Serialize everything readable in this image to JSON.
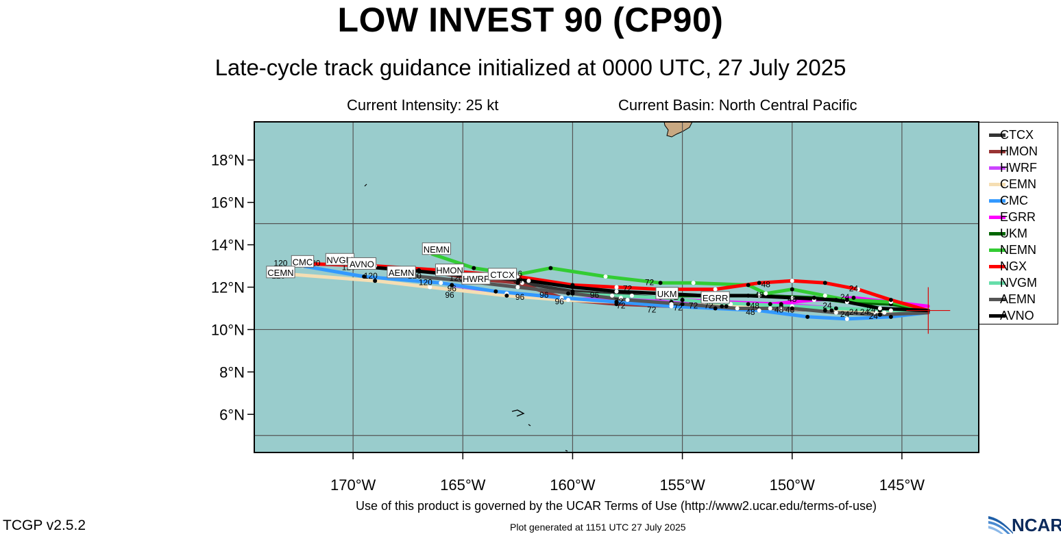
{
  "header": {
    "title": "LOW INVEST 90 (CP90)",
    "subtitle": "Late-cycle track guidance initialized at 0000 UTC, 27 July 2025",
    "intensity": "Current Intensity: 25 kt",
    "basin": "Current Basin: North Central Pacific"
  },
  "map": {
    "lon_range": [
      -174.5,
      -141.5
    ],
    "lat_range": [
      4.2,
      19.8
    ],
    "background_color": "#99cccc",
    "land_color": "#c8a882",
    "axis_labels": {
      "lat": [
        "6°N",
        "8°N",
        "10°N",
        "12°N",
        "14°N",
        "16°N",
        "18°N"
      ],
      "lon": [
        "170°W",
        "165°W",
        "160°W",
        "155°W",
        "150°W",
        "145°W"
      ]
    },
    "current_position": {
      "lon": -143.8,
      "lat": 10.9
    }
  },
  "models": [
    {
      "name": "CTCX",
      "color": "#333333",
      "track": [
        [
          -143.8,
          10.9
        ],
        [
          -146.0,
          10.7
        ],
        [
          -148.2,
          10.9
        ],
        [
          -150.5,
          11.1
        ],
        [
          -152.8,
          11.2
        ],
        [
          -155.0,
          11.4
        ],
        [
          -157.3,
          11.6
        ],
        [
          -160.0,
          11.8
        ],
        [
          -162.3,
          12.2
        ],
        [
          -164.0,
          12.5
        ]
      ]
    },
    {
      "name": "HMON",
      "color": "#993333",
      "track": [
        [
          -143.8,
          10.8
        ],
        [
          -146.2,
          10.8
        ],
        [
          -148.5,
          10.9
        ],
        [
          -151.0,
          11.0
        ],
        [
          -153.2,
          11.1
        ],
        [
          -155.5,
          11.1
        ],
        [
          -158.0,
          11.2
        ],
        [
          -160.2,
          11.4
        ],
        [
          -162.5,
          12.2
        ],
        [
          -164.5,
          12.4
        ],
        [
          -167.0,
          12.8
        ]
      ]
    },
    {
      "name": "HWRF",
      "color": "#cc44ff",
      "track": [
        [
          -143.8,
          10.8
        ],
        [
          -146.0,
          10.9
        ],
        [
          -148.0,
          11.0
        ],
        [
          -150.5,
          11.2
        ],
        [
          -153.0,
          11.3
        ],
        [
          -155.5,
          11.3
        ],
        [
          -157.8,
          11.5
        ],
        [
          -160.5,
          11.4
        ],
        [
          -163.0,
          11.7
        ],
        [
          -165.5,
          12.1
        ]
      ]
    },
    {
      "name": "CEMN",
      "color": "#f5deb3",
      "track": [
        [
          -143.8,
          10.9
        ],
        [
          -145.8,
          10.8
        ],
        [
          -148.2,
          10.9
        ],
        [
          -150.5,
          11.0
        ],
        [
          -153.0,
          11.1
        ],
        [
          -155.5,
          11.2
        ],
        [
          -158.0,
          11.3
        ],
        [
          -160.5,
          11.4
        ],
        [
          -163.0,
          11.6
        ],
        [
          -166.5,
          12.0
        ],
        [
          -169.0,
          12.3
        ],
        [
          -172.8,
          12.6
        ]
      ]
    },
    {
      "name": "CMC",
      "color": "#3399ff",
      "track": [
        [
          -143.8,
          10.8
        ],
        [
          -145.5,
          10.6
        ],
        [
          -147.5,
          10.5
        ],
        [
          -149.3,
          10.6
        ],
        [
          -151.5,
          10.9
        ],
        [
          -153.5,
          11.0
        ],
        [
          -155.5,
          11.1
        ],
        [
          -158.0,
          11.3
        ],
        [
          -160.5,
          11.5
        ],
        [
          -163.5,
          11.8
        ],
        [
          -166.0,
          12.2
        ],
        [
          -169.5,
          12.5
        ],
        [
          -172.3,
          13.0
        ]
      ]
    },
    {
      "name": "EGRR",
      "color": "#ff00ff",
      "track": [
        [
          -143.8,
          11.1
        ],
        [
          -145.5,
          11.3
        ],
        [
          -147.2,
          11.5
        ],
        [
          -149.0,
          11.4
        ],
        [
          -151.0,
          11.2
        ],
        [
          -153.2,
          11.3
        ],
        [
          -155.0,
          11.4
        ]
      ]
    },
    {
      "name": "UKM",
      "color": "#006600",
      "track": [
        [
          -143.8,
          10.9
        ],
        [
          -145.5,
          11.2
        ],
        [
          -147.5,
          11.3
        ],
        [
          -149.0,
          11.5
        ],
        [
          -151.5,
          11.6
        ],
        [
          -153.5,
          11.6
        ],
        [
          -155.6,
          11.6
        ]
      ]
    },
    {
      "name": "NEMN",
      "color": "#33cc33",
      "track": [
        [
          -143.8,
          10.9
        ],
        [
          -145.5,
          11.3
        ],
        [
          -147.5,
          11.4
        ],
        [
          -148.5,
          11.6
        ],
        [
          -150.0,
          11.9
        ],
        [
          -151.2,
          11.7
        ],
        [
          -152.0,
          12.1
        ],
        [
          -154.5,
          12.2
        ],
        [
          -156.0,
          12.2
        ],
        [
          -158.5,
          12.5
        ],
        [
          -161.0,
          12.9
        ],
        [
          -162.5,
          12.6
        ],
        [
          -164.5,
          12.9
        ],
        [
          -166.5,
          13.6
        ]
      ]
    },
    {
      "name": "NGX",
      "color": "#ff0000",
      "track": [
        [
          -143.8,
          10.9
        ],
        [
          -145.5,
          11.4
        ],
        [
          -147.0,
          11.9
        ],
        [
          -148.5,
          12.2
        ],
        [
          -150.0,
          12.3
        ],
        [
          -151.5,
          12.2
        ],
        [
          -153.5,
          11.9
        ],
        [
          -156.0,
          11.9
        ],
        [
          -158.0,
          12.0
        ],
        [
          -160.0,
          12.1
        ],
        [
          -162.5,
          12.5
        ],
        [
          -166.0,
          12.8
        ],
        [
          -169.0,
          13.0
        ],
        [
          -172.0,
          13.1
        ]
      ]
    },
    {
      "name": "NVGM",
      "color": "#66ddaa",
      "track": [
        [
          -143.8,
          10.9
        ],
        [
          -145.5,
          10.9
        ],
        [
          -148.0,
          11.0
        ],
        [
          -150.0,
          11.1
        ],
        [
          -152.0,
          11.2
        ],
        [
          -154.0,
          11.3
        ],
        [
          -156.0,
          11.5
        ],
        [
          -158.2,
          11.6
        ],
        [
          -160.2,
          11.7
        ]
      ]
    },
    {
      "name": "AEMN",
      "color": "#555555",
      "track": [
        [
          -143.8,
          10.8
        ],
        [
          -146.0,
          10.7
        ],
        [
          -148.0,
          10.8
        ],
        [
          -150.0,
          11.0
        ],
        [
          -152.5,
          11.0
        ],
        [
          -155.0,
          11.2
        ],
        [
          -157.5,
          11.4
        ],
        [
          -160.0,
          11.7
        ],
        [
          -162.5,
          12.0
        ],
        [
          -165.0,
          12.3
        ],
        [
          -168.0,
          12.6
        ]
      ]
    },
    {
      "name": "AVNO",
      "color": "#000000",
      "track": [
        [
          -143.8,
          10.9
        ],
        [
          -146.0,
          11.0
        ],
        [
          -148.0,
          11.4
        ],
        [
          -150.0,
          11.5
        ],
        [
          -152.0,
          11.6
        ],
        [
          -154.0,
          11.6
        ],
        [
          -156.0,
          11.7
        ],
        [
          -158.0,
          11.8
        ],
        [
          -160.0,
          12.0
        ],
        [
          -162.0,
          12.3
        ],
        [
          -164.5,
          12.5
        ],
        [
          -167.5,
          12.8
        ],
        [
          -170.0,
          13.0
        ]
      ]
    }
  ],
  "track_labels": [
    {
      "text": "CMC",
      "lon": -172.3,
      "lat": 13.2
    },
    {
      "text": "NVGM",
      "lon": -170.6,
      "lat": 13.3
    },
    {
      "text": "AVNO",
      "lon": -169.6,
      "lat": 13.1
    },
    {
      "text": "NEMN",
      "lon": -166.2,
      "lat": 13.8
    },
    {
      "text": "CEMN",
      "lon": -173.3,
      "lat": 12.7
    },
    {
      "text": "AEMN",
      "lon": -167.8,
      "lat": 12.7
    },
    {
      "text": "HMON",
      "lon": -165.6,
      "lat": 12.8
    },
    {
      "text": "HWRF",
      "lon": -164.4,
      "lat": 12.4
    },
    {
      "text": "CTCX",
      "lon": -163.2,
      "lat": 12.6
    },
    {
      "text": "UKM",
      "lon": -155.7,
      "lat": 11.7
    },
    {
      "text": "EGRR",
      "lon": -153.5,
      "lat": 11.5
    }
  ],
  "hour_labels": [
    {
      "text": "120",
      "lon": -173.3,
      "lat": 13.0
    },
    {
      "text": "120",
      "lon": -171.8,
      "lat": 13.0
    },
    {
      "text": "120",
      "lon": -173.4,
      "lat": 12.4
    },
    {
      "text": "120",
      "lon": -170.2,
      "lat": 12.8
    },
    {
      "text": "120",
      "lon": -169.2,
      "lat": 12.4
    },
    {
      "text": "120",
      "lon": -167.2,
      "lat": 12.4
    },
    {
      "text": "120",
      "lon": -166.7,
      "lat": 12.1
    },
    {
      "text": "120",
      "lon": -165.3,
      "lat": 12.3
    },
    {
      "text": "96",
      "lon": -165.5,
      "lat": 11.8
    },
    {
      "text": "96",
      "lon": -165.6,
      "lat": 11.5
    },
    {
      "text": "96",
      "lon": -164.5,
      "lat": 12.2
    },
    {
      "text": "96",
      "lon": -162.5,
      "lat": 12.5
    },
    {
      "text": "96",
      "lon": -162.5,
      "lat": 12.2
    },
    {
      "text": "96",
      "lon": -162.4,
      "lat": 11.4
    },
    {
      "text": "96",
      "lon": -161.3,
      "lat": 11.5
    },
    {
      "text": "96",
      "lon": -160.6,
      "lat": 11.2
    },
    {
      "text": "96",
      "lon": -159.0,
      "lat": 11.5
    },
    {
      "text": "72",
      "lon": -156.5,
      "lat": 12.1
    },
    {
      "text": "72",
      "lon": -157.5,
      "lat": 11.8
    },
    {
      "text": "72",
      "lon": -157.9,
      "lat": 11.2
    },
    {
      "text": "72",
      "lon": -157.8,
      "lat": 11.0
    },
    {
      "text": "72",
      "lon": -155.4,
      "lat": 11.4
    },
    {
      "text": "72",
      "lon": -155.2,
      "lat": 10.9
    },
    {
      "text": "72",
      "lon": -156.4,
      "lat": 10.8
    },
    {
      "text": "72",
      "lon": -154.5,
      "lat": 11.0
    },
    {
      "text": "72",
      "lon": -153.8,
      "lat": 11.0
    },
    {
      "text": "48",
      "lon": -151.2,
      "lat": 12.0
    },
    {
      "text": "48",
      "lon": -151.5,
      "lat": 11.5
    },
    {
      "text": "48",
      "lon": -150.0,
      "lat": 11.3
    },
    {
      "text": "48",
      "lon": -151.7,
      "lat": 11.0
    },
    {
      "text": "48",
      "lon": -151.9,
      "lat": 10.7
    },
    {
      "text": "48",
      "lon": -150.6,
      "lat": 10.8
    },
    {
      "text": "48",
      "lon": -150.1,
      "lat": 10.8
    },
    {
      "text": "24",
      "lon": -147.2,
      "lat": 11.8
    },
    {
      "text": "24",
      "lon": -147.6,
      "lat": 11.4
    },
    {
      "text": "24",
      "lon": -148.4,
      "lat": 11.0
    },
    {
      "text": "24",
      "lon": -147.6,
      "lat": 10.6
    },
    {
      "text": "24",
      "lon": -147.2,
      "lat": 10.7
    },
    {
      "text": "24",
      "lon": -146.7,
      "lat": 10.7
    },
    {
      "text": "24",
      "lon": -146.3,
      "lat": 10.5
    },
    {
      "text": "24",
      "lon": -146.4,
      "lat": 10.8
    }
  ],
  "footer": {
    "terms": "Use of this product is governed by the UCAR Terms of Use (http://www2.ucar.edu/terms-of-use)",
    "generated": "Plot generated at 1151 UTC   27 July 2025",
    "version": "TCGP v2.5.2",
    "logo": "NCAR"
  }
}
